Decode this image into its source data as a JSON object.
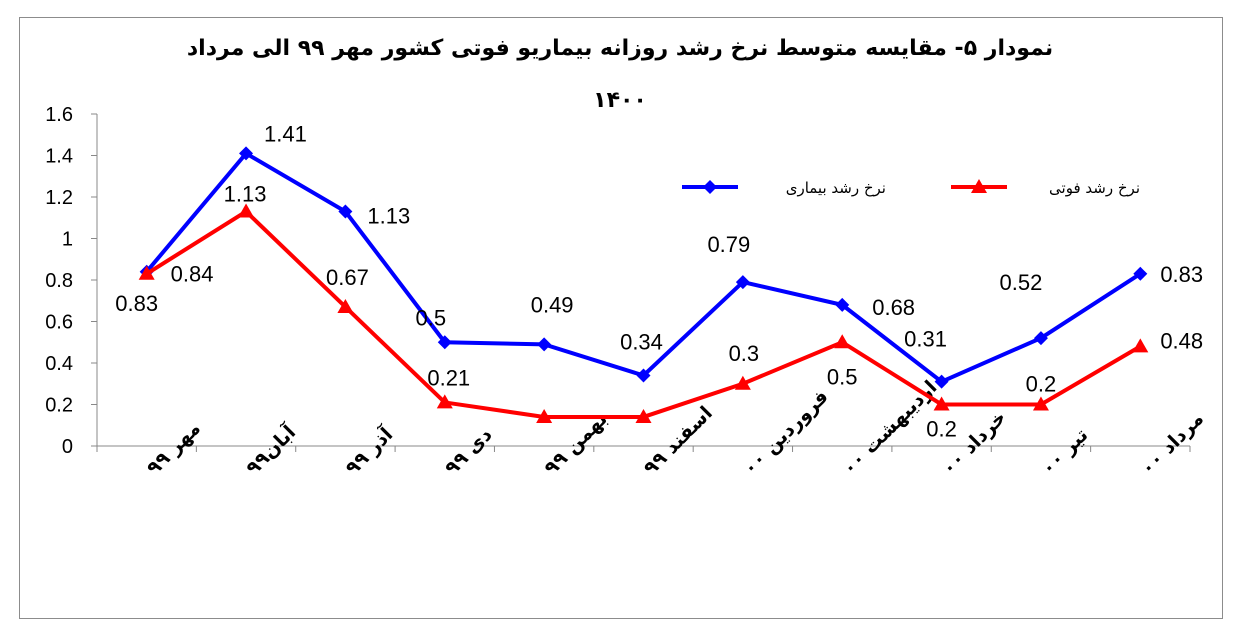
{
  "chart_data": {
    "type": "line",
    "title": "نمودار ۵- مقایسه متوسط نرخ رشد روزانه بیماریو فوتی کشور مهر ۹۹ الی مرداد",
    "title_line2": "۱۴۰۰",
    "categories": [
      "مهر ۹۹",
      "آبان۹۹",
      "آذر ۹۹",
      "دی ۹۹",
      "بهمن ۹۹",
      "اسفند ۹۹",
      "فروردین ۰۰",
      "اردیبهشت ۰۰",
      "خرداد ۰۰",
      "تیر ۰۰",
      "مرداد ۰۰"
    ],
    "ylim": [
      0,
      1.6
    ],
    "yticks": [
      0,
      0.2,
      0.4,
      0.6,
      0.8,
      1,
      1.2,
      1.4,
      1.6
    ],
    "ytick_labels": [
      "0",
      "0.2",
      "0.4",
      "0.6",
      "0.8",
      "1",
      "1.2",
      "1.4",
      "1.6"
    ],
    "grid": false,
    "legend_position": "top-right",
    "series": [
      {
        "name": "نرخ رشد بیماری",
        "color": "#0000ff",
        "marker": "diamond",
        "values": [
          0.84,
          1.41,
          1.13,
          0.5,
          0.49,
          0.34,
          0.79,
          0.68,
          0.31,
          0.52,
          0.83
        ],
        "labels": [
          "0.84",
          "1.41",
          "1.13",
          "0.5",
          "0.49",
          "0.34",
          "0.79",
          "0.68",
          "0.31",
          "0.52",
          "0.83"
        ]
      },
      {
        "name": "نرخ رشد فوتی",
        "color": "#ff0000",
        "marker": "triangle",
        "values": [
          0.83,
          1.13,
          0.67,
          0.21,
          0.14,
          0.14,
          0.3,
          0.5,
          0.2,
          0.2,
          0.48
        ],
        "labels": [
          "0.83",
          "1.13",
          "0.67",
          "0.21",
          "",
          "",
          "0.3",
          "0.5",
          "0.2",
          "0.2",
          "0.48"
        ]
      }
    ]
  }
}
